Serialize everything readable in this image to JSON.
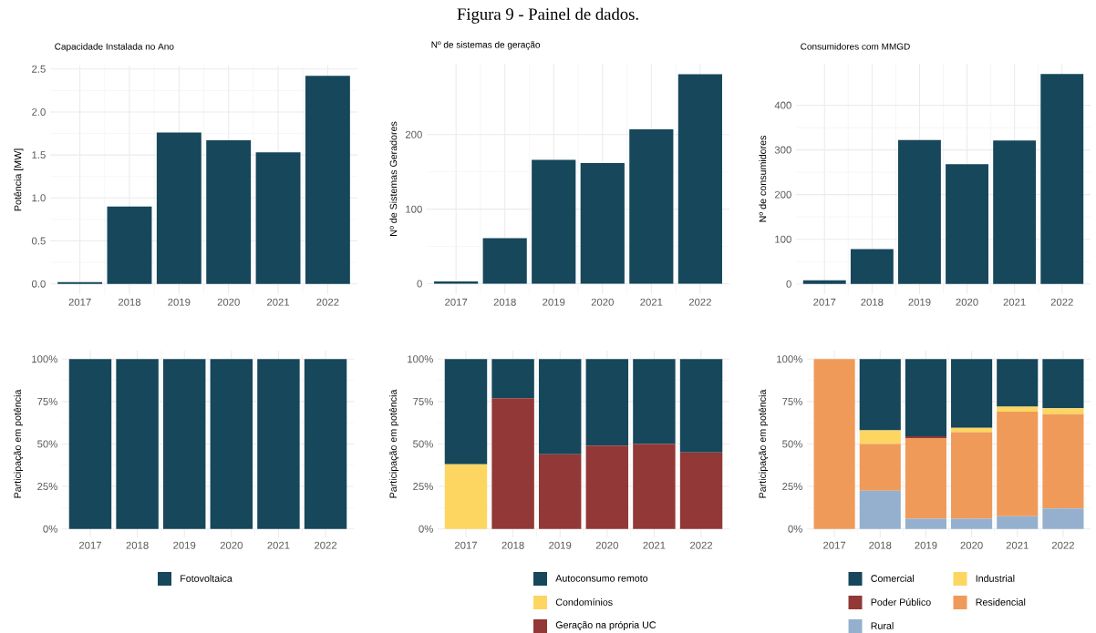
{
  "chart_data": [
    {
      "type": "bar",
      "title": "Capacidade Instalada no Ano",
      "ylabel": "Potência [MW]",
      "annotations": [
        "Figura 9 - Painel de dados."
      ],
      "categories": [
        "2017",
        "2018",
        "2019",
        "2020",
        "2021",
        "2022"
      ],
      "values": [
        0.02,
        0.9,
        1.76,
        1.67,
        1.53,
        2.42
      ],
      "color": "#16475b",
      "ylim": [
        -0.12,
        2.54
      ],
      "yticks": [
        {
          "value": 0,
          "label": "0.0"
        },
        {
          "value": 0.5,
          "label": "0.5"
        },
        {
          "value": 1,
          "label": "1.0"
        },
        {
          "value": 1.5,
          "label": "1.5"
        },
        {
          "value": 2,
          "label": "2.0"
        },
        {
          "value": 2.5,
          "label": "2.5"
        }
      ],
      "grid": true
    },
    {
      "type": "bar",
      "title": "Nº de sistemas de geração",
      "ylabel": "Nº de Sistemas Geradores",
      "categories": [
        "2017",
        "2018",
        "2019",
        "2020",
        "2021",
        "2022"
      ],
      "values": [
        3,
        61,
        166,
        162,
        207,
        281
      ],
      "color": "#16475b",
      "ylim": [
        -14,
        295
      ],
      "yticks": [
        0,
        100,
        200
      ],
      "grid": true
    },
    {
      "type": "bar",
      "title": "Consumidores com MMGD",
      "ylabel": "Nº de consumidores",
      "categories": [
        "2017",
        "2018",
        "2019",
        "2020",
        "2021",
        "2022"
      ],
      "values": [
        8,
        78,
        322,
        268,
        321,
        470
      ],
      "color": "#16475b",
      "ylim": [
        -23,
        493
      ],
      "yticks": [
        0,
        100,
        200,
        300,
        400
      ],
      "grid": true
    },
    {
      "type": "bar",
      "ylabel": "Participação em potência",
      "categories": [
        "2017",
        "2018",
        "2019",
        "2020",
        "2021",
        "2022"
      ],
      "stacked": true,
      "legend": "bottom",
      "grid": true,
      "ylim": [
        -5,
        105
      ],
      "yticks": [
        {
          "value": 0,
          "label": "0%"
        },
        {
          "value": 25,
          "label": "25%"
        },
        {
          "value": 50,
          "label": "50%"
        },
        {
          "value": 75,
          "label": "75%"
        },
        {
          "value": 100,
          "label": "100%"
        }
      ],
      "series": [
        {
          "name": "Fotovoltaica",
          "color": "#16475b",
          "values": [
            100,
            100,
            100,
            100,
            100,
            100
          ]
        }
      ]
    },
    {
      "type": "bar",
      "ylabel": "Participação em potência",
      "categories": [
        "2017",
        "2018",
        "2019",
        "2020",
        "2021",
        "2022"
      ],
      "stacked": true,
      "legend": "bottom",
      "grid": true,
      "ylim": [
        -5,
        105
      ],
      "yticks": [
        {
          "value": 0,
          "label": "0%"
        },
        {
          "value": 25,
          "label": "25%"
        },
        {
          "value": 50,
          "label": "50%"
        },
        {
          "value": 75,
          "label": "75%"
        },
        {
          "value": 100,
          "label": "100%"
        }
      ],
      "series": [
        {
          "name": "Geração na própria UC",
          "color": "#923836",
          "values": [
            0,
            77,
            44,
            49,
            50,
            45
          ]
        },
        {
          "name": "Condomínios",
          "color": "#fdd662",
          "values": [
            38,
            0,
            0,
            0,
            0,
            0
          ]
        },
        {
          "name": "Autoconsumo remoto",
          "color": "#16475b",
          "values": [
            62,
            23,
            56,
            51,
            50,
            55
          ]
        }
      ]
    },
    {
      "type": "bar",
      "ylabel": "Participação em potência",
      "categories": [
        "2017",
        "2018",
        "2019",
        "2020",
        "2021",
        "2022"
      ],
      "stacked": true,
      "legend": "bottom",
      "grid": true,
      "ylim": [
        -5,
        105
      ],
      "yticks": [
        {
          "value": 0,
          "label": "0%"
        },
        {
          "value": 25,
          "label": "25%"
        },
        {
          "value": 50,
          "label": "50%"
        },
        {
          "value": 75,
          "label": "75%"
        },
        {
          "value": 100,
          "label": "100%"
        }
      ],
      "series": [
        {
          "name": "Rural",
          "color": "#94b0ce",
          "values": [
            0,
            22.5,
            6,
            6,
            7.5,
            12
          ]
        },
        {
          "name": "Residencial",
          "color": "#f09a5a",
          "values": [
            100,
            27.5,
            47.5,
            51,
            61.5,
            55.5
          ]
        },
        {
          "name": "Poder Público",
          "color": "#923836",
          "values": [
            0,
            0,
            1,
            0,
            0,
            0
          ]
        },
        {
          "name": "Industrial",
          "color": "#fdd662",
          "values": [
            0,
            8,
            0,
            2.5,
            3,
            3.5
          ]
        },
        {
          "name": "Comercial",
          "color": "#16475b",
          "values": [
            0,
            42,
            45.5,
            40.5,
            28,
            29
          ]
        }
      ]
    }
  ]
}
